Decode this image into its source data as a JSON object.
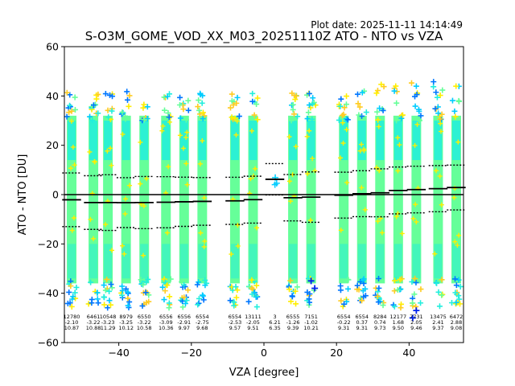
{
  "plot_date": "Plot date: 2025-11-11 14:14:49",
  "chart_data": {
    "type": "scatter",
    "title": "S-O3M_GOME_VOD_XX_M03_20251110Z ATO - NTO vs VZA",
    "xlabel": "VZA [degree]",
    "ylabel": "ATO - NTO [DU]",
    "xlim": [
      -55,
      55
    ],
    "ylim": [
      -60,
      60
    ],
    "xticks": [
      -40,
      -20,
      0,
      20,
      40
    ],
    "yticks": [
      -60,
      -40,
      -20,
      0,
      20,
      40,
      60
    ],
    "zero_line": 0,
    "bins": [
      {
        "x": -53,
        "count": "12780",
        "mean": -2.1,
        "std": 10.87,
        "mean_label": "-2.10",
        "std_label": "10.87"
      },
      {
        "x": -47,
        "count": "6461",
        "mean": -3.22,
        "std": 10.88,
        "mean_label": "-3.22",
        "std_label": "10.88"
      },
      {
        "x": -43,
        "count": "10548",
        "mean": -3.23,
        "std": 11.29,
        "mean_label": "-3.23",
        "std_label": "11.29"
      },
      {
        "x": -38,
        "count": "8979",
        "mean": -3.25,
        "std": 10.12,
        "mean_label": "-3.25",
        "std_label": "10.12"
      },
      {
        "x": -33,
        "count": "6550",
        "mean": -3.22,
        "std": 10.58,
        "mean_label": "-3.22",
        "std_label": "10.58"
      },
      {
        "x": -27,
        "count": "6556",
        "mean": -3.09,
        "std": 10.36,
        "mean_label": "-3.09",
        "std_label": "10.36"
      },
      {
        "x": -22,
        "count": "6556",
        "mean": -2.91,
        "std": 9.97,
        "mean_label": "-2.91",
        "std_label": "9.97"
      },
      {
        "x": -17,
        "count": "6554",
        "mean": -2.75,
        "std": 9.68,
        "mean_label": "-2.75",
        "std_label": "9.68"
      },
      {
        "x": -8,
        "count": "6554",
        "mean": -2.53,
        "std": 9.57,
        "mean_label": "-2.53",
        "std_label": "9.57"
      },
      {
        "x": -3,
        "count": "13111",
        "mean": -2.05,
        "std": 9.51,
        "mean_label": "-2.05",
        "std_label": "9.51"
      },
      {
        "x": 3,
        "count": "3",
        "mean": 6.21,
        "std": 6.35,
        "mean_label": "6.21",
        "std_label": "6.35"
      },
      {
        "x": 8,
        "count": "6555",
        "mean": -1.26,
        "std": 9.39,
        "mean_label": "-1.26",
        "std_label": "9.39"
      },
      {
        "x": 13,
        "count": "7151",
        "mean": -1.02,
        "std": 10.21,
        "mean_label": "-1.02",
        "std_label": "10.21"
      },
      {
        "x": 22,
        "count": "6554",
        "mean": -0.22,
        "std": 9.31,
        "mean_label": "-0.22",
        "std_label": "9.31"
      },
      {
        "x": 27,
        "count": "6554",
        "mean": 0.37,
        "std": 9.31,
        "mean_label": "0.37",
        "std_label": "9.31"
      },
      {
        "x": 32,
        "count": "8284",
        "mean": 0.74,
        "std": 9.73,
        "mean_label": "0.74",
        "std_label": "9.73"
      },
      {
        "x": 37,
        "count": "12177",
        "mean": 1.68,
        "std": 9.5,
        "mean_label": "1.68",
        "std_label": "9.50"
      },
      {
        "x": 42,
        "count": "7731",
        "mean": 2.05,
        "std": 9.46,
        "mean_label": "2.05",
        "std_label": "9.46"
      },
      {
        "x": 48,
        "count": "13475",
        "mean": 2.41,
        "std": 9.37,
        "mean_label": "2.41",
        "std_label": "9.37"
      },
      {
        "x": 53,
        "count": "6472",
        "mean": 2.88,
        "std": 9.08,
        "mean_label": "2.88",
        "std_label": "9.08"
      }
    ],
    "colors": {
      "point_main": "#66ff99",
      "point_secondary": "#22eedd",
      "point_cyan": "#00ccff",
      "point_blue": "#0077ff",
      "point_yellow": "#ffee00",
      "point_orange": "#ffcc22",
      "point_deepblue": "#0022ee",
      "line": "#000000"
    }
  }
}
